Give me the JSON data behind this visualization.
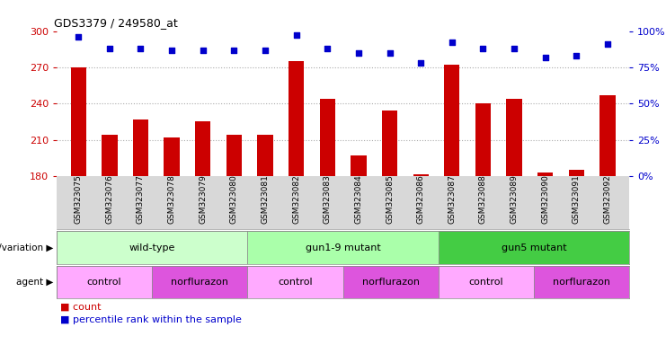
{
  "title": "GDS3379 / 249580_at",
  "samples": [
    "GSM323075",
    "GSM323076",
    "GSM323077",
    "GSM323078",
    "GSM323079",
    "GSM323080",
    "GSM323081",
    "GSM323082",
    "GSM323083",
    "GSM323084",
    "GSM323085",
    "GSM323086",
    "GSM323087",
    "GSM323088",
    "GSM323089",
    "GSM323090",
    "GSM323091",
    "GSM323092"
  ],
  "counts": [
    270,
    214,
    227,
    212,
    225,
    214,
    214,
    275,
    244,
    197,
    234,
    181,
    272,
    240,
    244,
    183,
    185,
    247
  ],
  "percentile_ranks": [
    96,
    88,
    88,
    87,
    87,
    87,
    87,
    97,
    88,
    85,
    85,
    78,
    92,
    88,
    88,
    82,
    83,
    91
  ],
  "ylim_left": [
    180,
    300
  ],
  "ylim_right": [
    0,
    100
  ],
  "yticks_left": [
    180,
    210,
    240,
    270,
    300
  ],
  "yticks_right": [
    0,
    25,
    50,
    75,
    100
  ],
  "bar_color": "#cc0000",
  "dot_color": "#0000cc",
  "grid_color": "#aaaaaa",
  "genotype_groups": [
    {
      "label": "wild-type",
      "start": 0,
      "end": 6,
      "color": "#ccffcc"
    },
    {
      "label": "gun1-9 mutant",
      "start": 6,
      "end": 12,
      "color": "#aaffaa"
    },
    {
      "label": "gun5 mutant",
      "start": 12,
      "end": 18,
      "color": "#44cc44"
    }
  ],
  "agent_groups": [
    {
      "label": "control",
      "start": 0,
      "end": 3,
      "color": "#ffaaff"
    },
    {
      "label": "norflurazon",
      "start": 3,
      "end": 6,
      "color": "#dd55dd"
    },
    {
      "label": "control",
      "start": 6,
      "end": 9,
      "color": "#ffaaff"
    },
    {
      "label": "norflurazon",
      "start": 9,
      "end": 12,
      "color": "#dd55dd"
    },
    {
      "label": "control",
      "start": 12,
      "end": 15,
      "color": "#ffaaff"
    },
    {
      "label": "norflurazon",
      "start": 15,
      "end": 18,
      "color": "#dd55dd"
    }
  ],
  "bg_color": "#ffffff",
  "tick_area_color": "#d8d8d8",
  "legend_count_color": "#cc0000",
  "legend_dot_color": "#0000cc"
}
